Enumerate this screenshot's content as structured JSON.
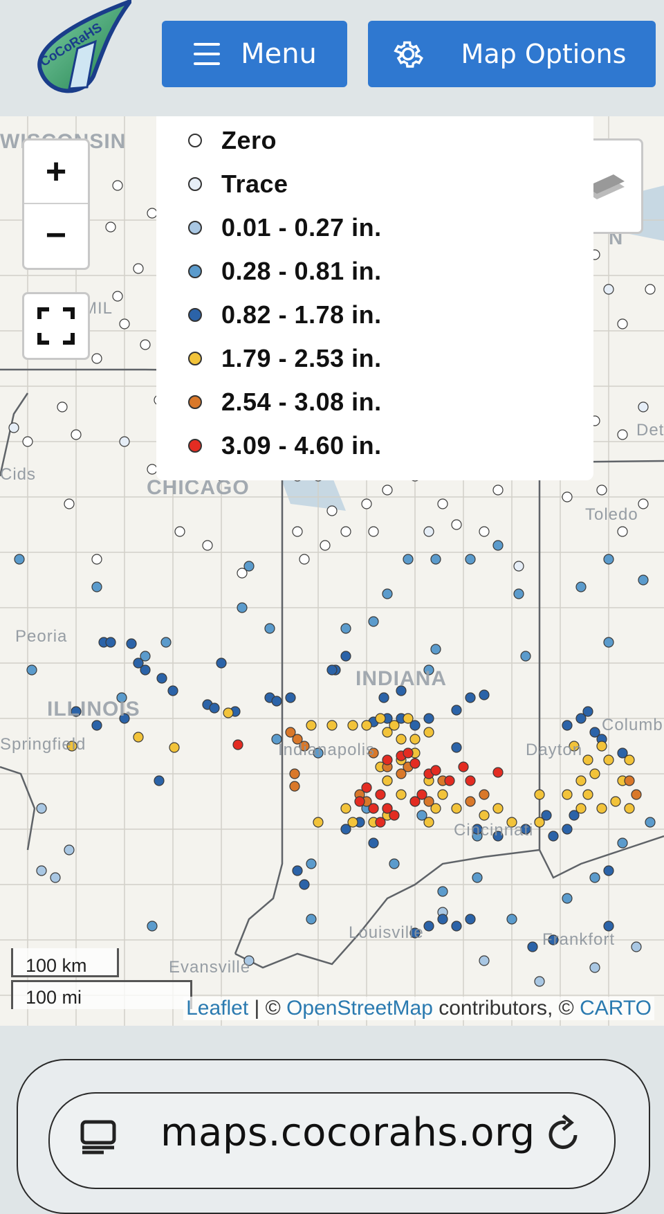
{
  "header": {
    "logo_text": "CoCoRaHS",
    "menu_label": "Menu",
    "options_label": "Map Options"
  },
  "map": {
    "labels": [
      "WISCONSIN",
      "MICHIGAN",
      "MIL",
      "CHICAGO",
      "ILLINOIS",
      "INDIANA",
      "Peoria",
      "Indianapolis",
      "Dayton",
      "Cincinnati",
      "Louisville",
      "Frankfort",
      "Evansville",
      "Toledo",
      "Columbus",
      "Springfield",
      "Cids",
      "Det"
    ],
    "zoom_in": "+",
    "zoom_out": "−"
  },
  "legend": {
    "items": [
      {
        "label": "Zero",
        "color": "#ffffff"
      },
      {
        "label": "Trace",
        "color": "#e6eef7"
      },
      {
        "label": "0.01 - 0.27 in.",
        "color": "#a9c7e3"
      },
      {
        "label": "0.28 - 0.81 in.",
        "color": "#5b9bcc"
      },
      {
        "label": "0.82 - 1.78 in.",
        "color": "#2b63a8"
      },
      {
        "label": "1.79 - 2.53 in.",
        "color": "#f2c33a"
      },
      {
        "label": "2.54 - 3.08 in.",
        "color": "#d9782a"
      },
      {
        "label": "3.09 - 4.60 in.",
        "color": "#e32c22"
      }
    ]
  },
  "scale": {
    "km": "100 km",
    "mi": "100 mi"
  },
  "attribution": {
    "leaflet": "Leaflet",
    "sep": " | © ",
    "osm": "OpenStreetMap",
    "contrib": " contributors, © ",
    "carto": "CARTO"
  },
  "browser": {
    "url": "maps.cocorahs.org"
  }
}
